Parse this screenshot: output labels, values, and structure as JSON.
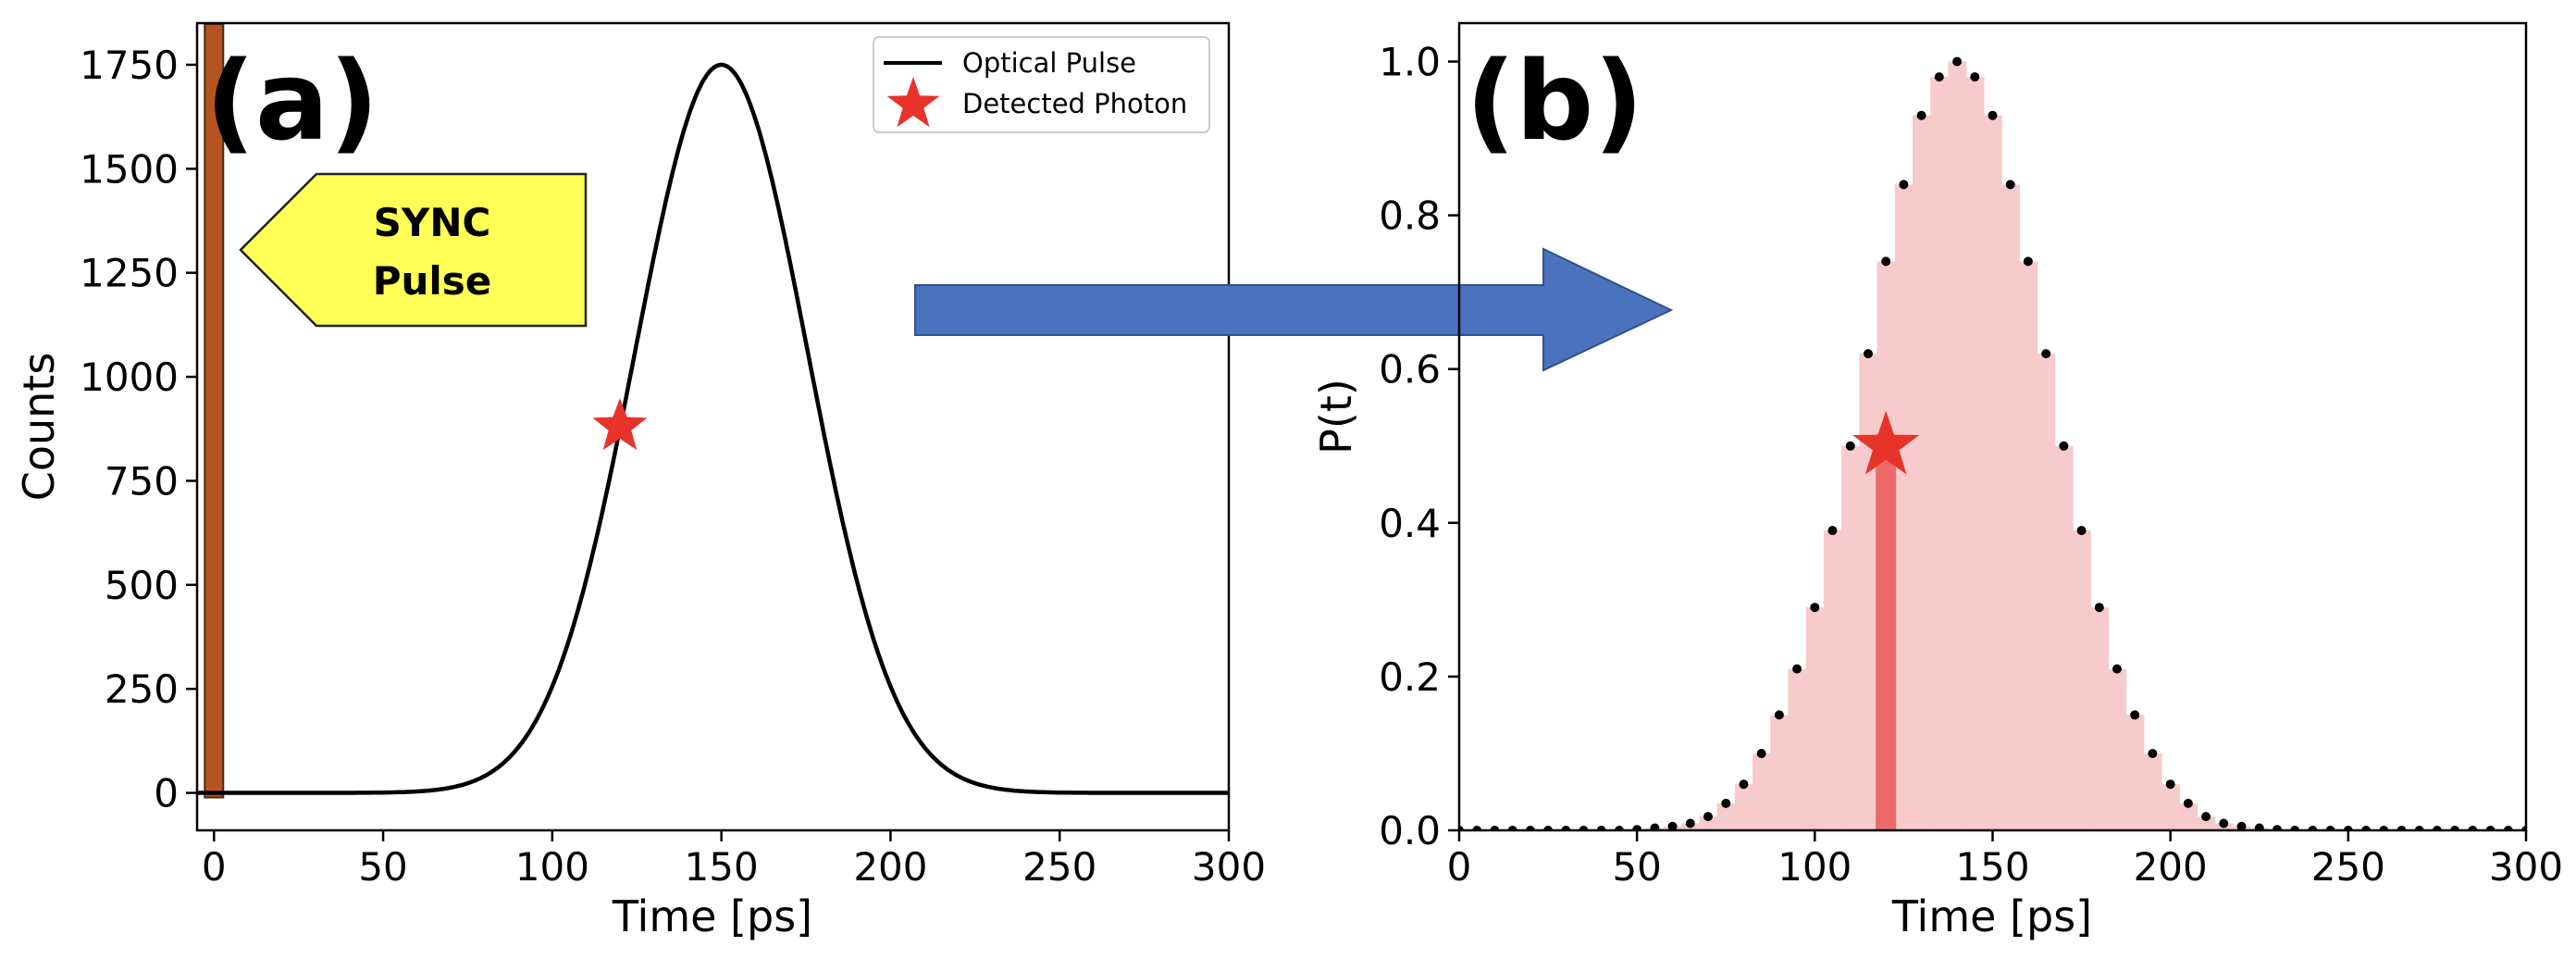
{
  "chart_data": [
    {
      "panel_label": "(a)",
      "type": "line",
      "xlabel": "Time [ps]",
      "ylabel": "Counts",
      "xlim": [
        -5,
        300
      ],
      "ylim": [
        -90,
        1850
      ],
      "xticks": [
        0,
        50,
        100,
        150,
        200,
        250,
        300
      ],
      "yticks": [
        0,
        250,
        500,
        750,
        1000,
        1250,
        1500,
        1750
      ],
      "series": [
        {
          "name": "Optical Pulse",
          "color": "#000000",
          "gaussian": {
            "peak": 1750,
            "center": 150,
            "sigma": 25.5
          }
        }
      ],
      "markers": [
        {
          "name": "Detected Photon",
          "x": 120,
          "y": 880,
          "marker": "star",
          "color": "#e8332b"
        }
      ],
      "legend": {
        "placement": "top-right",
        "entries": [
          "Optical Pulse",
          "Detected Photon"
        ]
      },
      "sync_bar": {
        "x": 0,
        "color": "#b5541e"
      },
      "sync_callout": {
        "lines": [
          "SYNC",
          "Pulse"
        ],
        "color": "#ffff55"
      },
      "grid": false
    },
    {
      "panel_label": "(b)",
      "type": "bar",
      "xlabel": "Time [ps]",
      "ylabel": "P(t)",
      "xlim": [
        0,
        300
      ],
      "ylim": [
        0,
        1.05
      ],
      "xticks": [
        0,
        50,
        100,
        150,
        200,
        250,
        300
      ],
      "yticks": [
        "0.0",
        "0.2",
        "0.4",
        "0.6",
        "0.8",
        "1.0"
      ],
      "bin_width": 5,
      "values": [
        0,
        0,
        0,
        0,
        0,
        0,
        0,
        0,
        0,
        0,
        0.001,
        0.003,
        0.005,
        0.009,
        0.018,
        0.035,
        0.06,
        0.1,
        0.15,
        0.21,
        0.29,
        0.39,
        0.5,
        0.62,
        0.74,
        0.84,
        0.93,
        0.98,
        1.0,
        0.98,
        0.93,
        0.84,
        0.74,
        0.62,
        0.5,
        0.39,
        0.29,
        0.21,
        0.15,
        0.1,
        0.06,
        0.035,
        0.018,
        0.009,
        0.005,
        0.003,
        0.001,
        0,
        0,
        0,
        0,
        0,
        0,
        0,
        0,
        0,
        0,
        0,
        0,
        0,
        0
      ],
      "fill_color": "#f7cbcb",
      "highlight": {
        "x": 120,
        "value": 0.5,
        "color": "#ea6a67"
      },
      "star": {
        "x": 120,
        "y": 0.5,
        "color": "#e8332b"
      },
      "grid": false
    }
  ],
  "arrow": {
    "color": "#4a72bd",
    "border": "#2f528f"
  }
}
